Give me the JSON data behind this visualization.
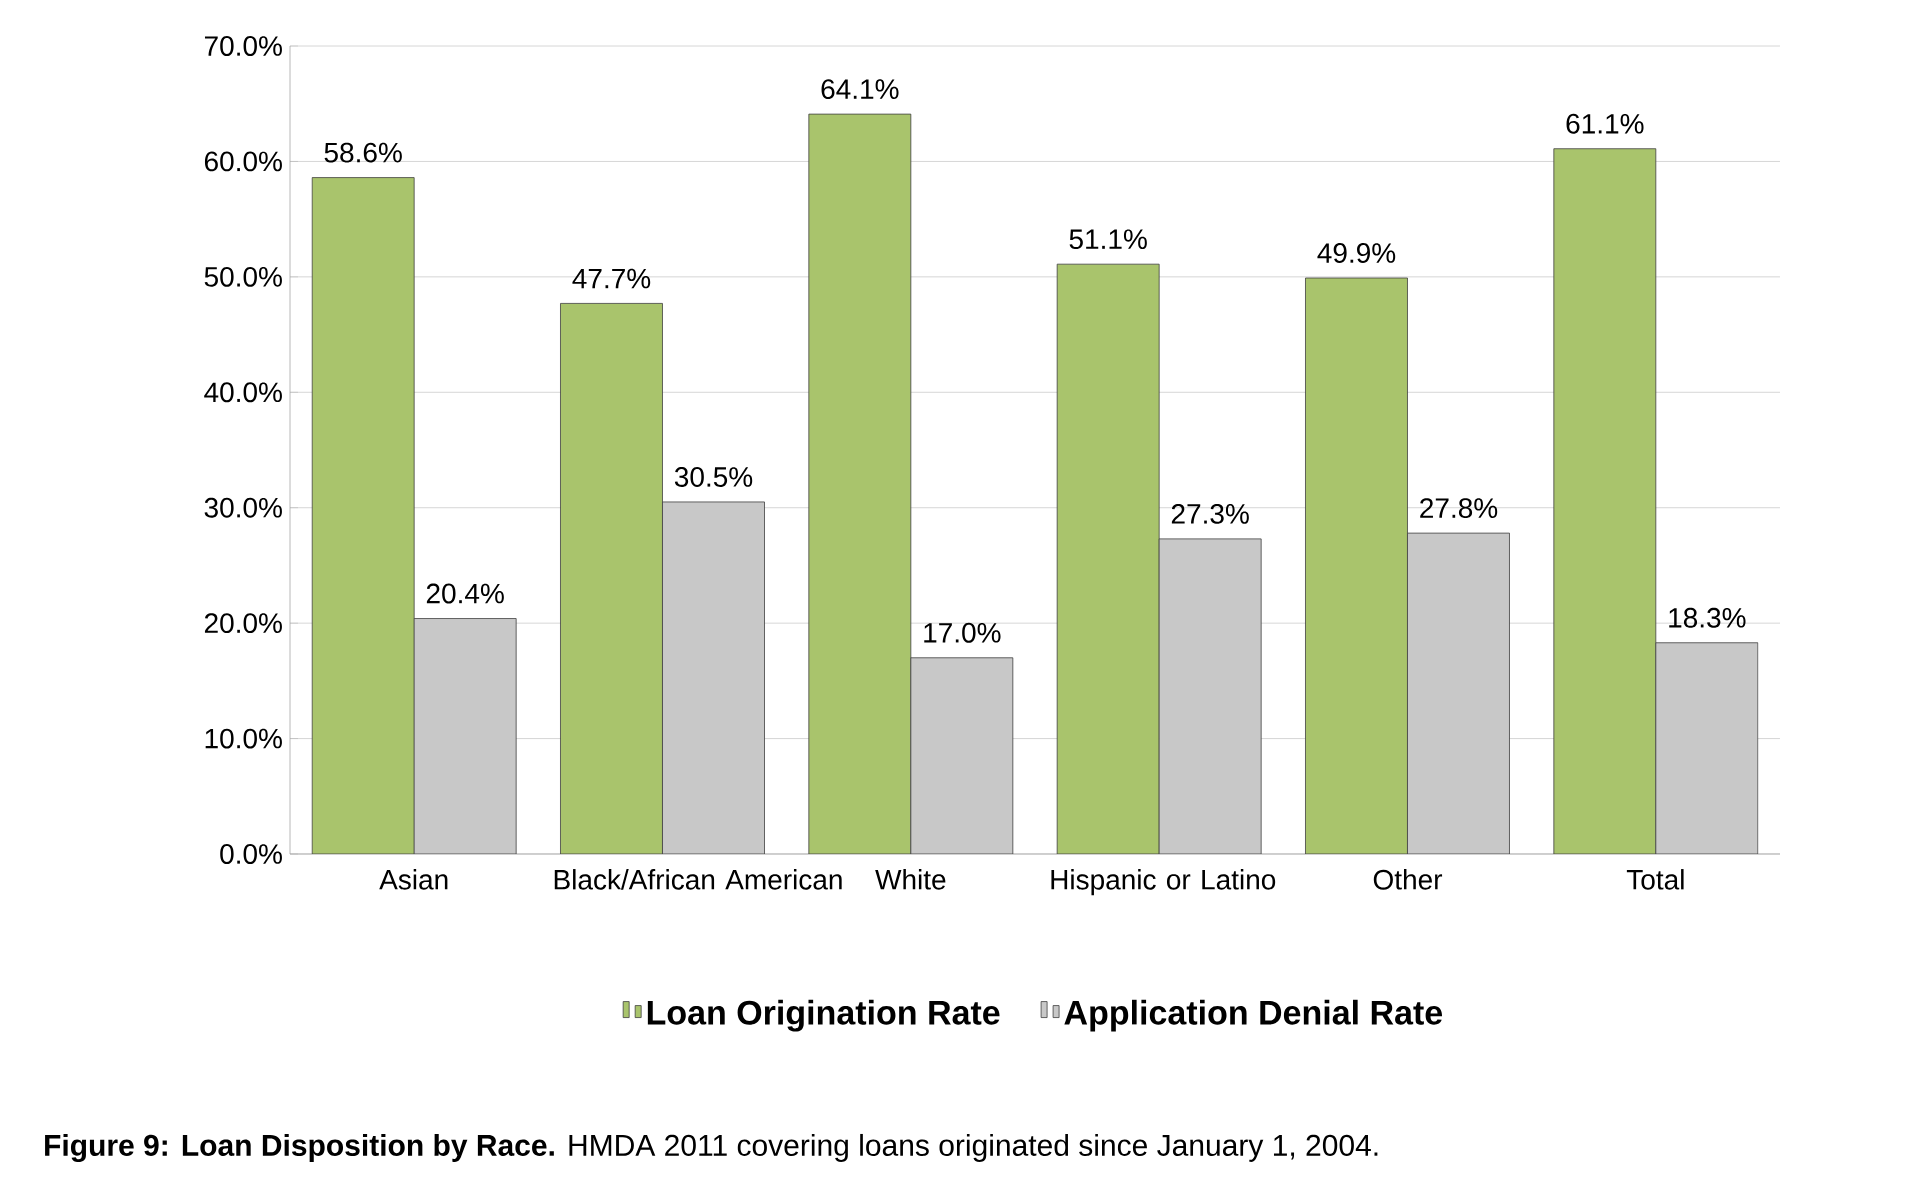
{
  "chart_data": {
    "type": "bar",
    "categories": [
      "Asian",
      "Black/African American",
      "White",
      "Hispanic or Latino",
      "Other",
      "Total"
    ],
    "series": [
      {
        "name": "Loan Origination Rate",
        "color": "#a9c46c",
        "values": [
          58.6,
          47.7,
          64.1,
          51.1,
          49.9,
          61.1
        ],
        "value_labels": [
          "58.6%",
          "47.7%",
          "64.1%",
          "51.1%",
          "49.9%",
          "61.1%"
        ]
      },
      {
        "name": "Application Denial Rate",
        "color": "#c8c8c8",
        "values": [
          20.4,
          30.5,
          17.0,
          27.3,
          27.8,
          18.3
        ],
        "value_labels": [
          "20.4%",
          "30.5%",
          "17.0%",
          "27.3%",
          "27.8%",
          "18.3%"
        ]
      }
    ],
    "ylim": [
      0,
      70
    ],
    "yticks": [
      {
        "value": 0,
        "label": "0.0%"
      },
      {
        "value": 10,
        "label": "10.0%"
      },
      {
        "value": 20,
        "label": "20.0%"
      },
      {
        "value": 30,
        "label": "30.0%"
      },
      {
        "value": 40,
        "label": "40.0%"
      },
      {
        "value": 50,
        "label": "50.0%"
      },
      {
        "value": 60,
        "label": "60.0%"
      },
      {
        "value": 70,
        "label": "70.0%"
      }
    ],
    "grid": "y",
    "legend": "bottom",
    "annotations": [
      "**Figure 9: Loan Disposition by Race.** HMDA 2011 covering loans originated since January 1, 2004."
    ]
  }
}
